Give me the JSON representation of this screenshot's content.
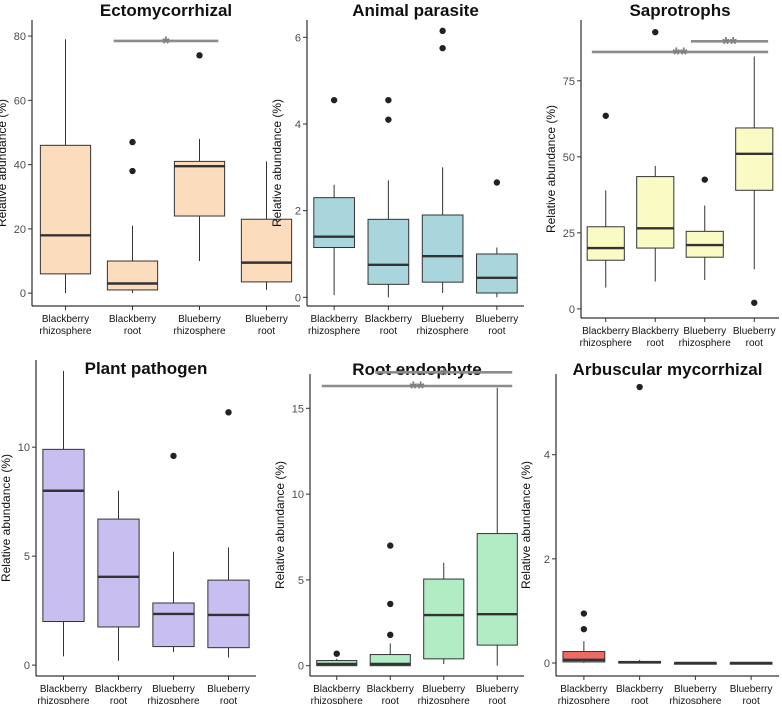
{
  "colors": {
    "ecto": "#fbdcbd",
    "animal": "#a9d6dc",
    "sapro": "#fafac4",
    "plant": "#c8bff0",
    "root": "#b2ecc4",
    "amf": "#ee6b63",
    "sig": "#8c8c8c"
  },
  "chart_data": [
    {
      "type": "box",
      "title": "Ectomycorrhizal",
      "ylabel": "Relative abundance (%)",
      "ylim": [
        -4,
        85
      ],
      "yticks": [
        0,
        20,
        40,
        60,
        80
      ],
      "fill": "ecto",
      "categories": [
        "Blackberry\nrhizosphere",
        "Blackberry\nroot",
        "Blueberry\nrhizosphere",
        "Blueberry\nroot"
      ],
      "boxes": [
        {
          "whislo": 0,
          "q1": 6,
          "med": 18,
          "q3": 46,
          "whishi": 79,
          "fliers": []
        },
        {
          "whislo": 0,
          "q1": 1,
          "med": 3,
          "q3": 10,
          "whishi": 21,
          "fliers": [
            38,
            47
          ]
        },
        {
          "whislo": 10,
          "q1": 24,
          "med": 39.5,
          "q3": 41,
          "whishi": 48,
          "fliers": [
            74
          ]
        },
        {
          "whislo": 1,
          "q1": 3.5,
          "med": 9.5,
          "q3": 23,
          "whishi": 41,
          "fliers": []
        }
      ],
      "significance": [
        {
          "from": 1,
          "to": 2,
          "y": 78.5,
          "label": "*"
        }
      ]
    },
    {
      "type": "box",
      "title": "Animal parasite",
      "ylabel": "Relative abundance (%)",
      "ylim": [
        -0.2,
        6.4
      ],
      "yticks": [
        0,
        2,
        4,
        6
      ],
      "fill": "animal",
      "categories": [
        "Blackberry\nrhizosphere",
        "Blackberry\nroot",
        "Blueberry\nrhizosphere",
        "Blueberry\nroot"
      ],
      "boxes": [
        {
          "whislo": 0.05,
          "q1": 1.15,
          "med": 1.4,
          "q3": 2.3,
          "whishi": 2.6,
          "fliers": [
            4.55
          ]
        },
        {
          "whislo": 0,
          "q1": 0.3,
          "med": 0.75,
          "q3": 1.8,
          "whishi": 2.7,
          "fliers": [
            4.1,
            4.55
          ]
        },
        {
          "whislo": 0.1,
          "q1": 0.35,
          "med": 0.95,
          "q3": 1.9,
          "whishi": 3.0,
          "fliers": [
            5.75,
            6.15
          ]
        },
        {
          "whislo": 0,
          "q1": 0.1,
          "med": 0.45,
          "q3": 1.0,
          "whishi": 1.15,
          "fliers": [
            2.65
          ]
        }
      ],
      "significance": []
    },
    {
      "type": "box",
      "title": "Saprotrophs",
      "ylabel": "Relative abundance (%)",
      "ylim": [
        -3,
        95
      ],
      "yticks": [
        0,
        25,
        50,
        75
      ],
      "fill": "sapro",
      "categories": [
        "Blackberry\nrhizosphere",
        "Blackberry\nroot",
        "Blueberry\nrhizosphere",
        "Blueberry\nroot"
      ],
      "boxes": [
        {
          "whislo": 7,
          "q1": 16,
          "med": 20,
          "q3": 27,
          "whishi": 39,
          "fliers": [
            63.5
          ]
        },
        {
          "whislo": 9,
          "q1": 20,
          "med": 26.5,
          "q3": 43.5,
          "whishi": 47,
          "fliers": [
            91
          ]
        },
        {
          "whislo": 9.5,
          "q1": 17,
          "med": 21,
          "q3": 25.5,
          "whishi": 34,
          "fliers": [
            42.5
          ]
        },
        {
          "whislo": 13,
          "q1": 39,
          "med": 51,
          "q3": 59.5,
          "whishi": 83,
          "fliers": [
            2
          ]
        }
      ],
      "significance": [
        {
          "from": 2,
          "to": 3,
          "y": 88,
          "label": "**"
        },
        {
          "from": 0,
          "to": 3,
          "y": 84.5,
          "label": "**"
        }
      ]
    },
    {
      "type": "box",
      "title": "Plant pathogen",
      "ylabel": "Relative abundance (%)",
      "ylim": [
        -0.5,
        14
      ],
      "yticks": [
        0,
        5,
        10
      ],
      "fill": "plant",
      "categories": [
        "Blackberry\nrhizosphere",
        "Blackberry\nroot",
        "Blueberry\nrhizosphere",
        "Blueberry\nroot"
      ],
      "boxes": [
        {
          "whislo": 0.4,
          "q1": 2.0,
          "med": 8.0,
          "q3": 9.9,
          "whishi": 13.5,
          "fliers": []
        },
        {
          "whislo": 0.2,
          "q1": 1.75,
          "med": 4.05,
          "q3": 6.7,
          "whishi": 8.0,
          "fliers": []
        },
        {
          "whislo": 0.6,
          "q1": 0.85,
          "med": 2.35,
          "q3": 2.85,
          "whishi": 5.2,
          "fliers": [
            9.6
          ]
        },
        {
          "whislo": 0.35,
          "q1": 0.8,
          "med": 2.3,
          "q3": 3.9,
          "whishi": 5.4,
          "fliers": [
            11.6
          ]
        }
      ],
      "significance": []
    },
    {
      "type": "box",
      "title": "Root endophyte",
      "ylabel": "Relative abundance (%)",
      "ylim": [
        -0.6,
        17
      ],
      "yticks": [
        0,
        5,
        10,
        15
      ],
      "fill": "root",
      "categories": [
        "Blackberry\nrhizosphere",
        "Blackberry\nroot",
        "Blueberry\nrhizosphere",
        "Blueberry\nroot"
      ],
      "boxes": [
        {
          "whislo": 0,
          "q1": 0,
          "med": 0.1,
          "q3": 0.3,
          "whishi": 0.4,
          "fliers": [
            0.7
          ]
        },
        {
          "whislo": 0,
          "q1": 0,
          "med": 0.1,
          "q3": 0.65,
          "whishi": 1.3,
          "fliers": [
            1.8,
            3.6,
            7.0
          ]
        },
        {
          "whislo": 0.1,
          "q1": 0.4,
          "med": 2.95,
          "q3": 5.05,
          "whishi": 6.0,
          "fliers": []
        },
        {
          "whislo": 0,
          "q1": 1.2,
          "med": 3.0,
          "q3": 7.7,
          "whishi": 16.2,
          "fliers": []
        }
      ],
      "significance": [
        {
          "from": 1,
          "to": 3,
          "y": 17.1,
          "label": "*"
        },
        {
          "from": 0,
          "to": 3,
          "y": 16.3,
          "label": "**"
        }
      ]
    },
    {
      "type": "box",
      "title": "Arbuscular mycorrhizal",
      "ylabel": "Relative abundance (%)",
      "ylim": [
        -0.25,
        5.55
      ],
      "yticks": [
        0,
        2,
        4
      ],
      "fill": "amf",
      "categories": [
        "Blackberry\nrhizosphere",
        "Blackberry\nroot",
        "Blueberry\nrhizosphere",
        "Blueberry\nroot"
      ],
      "boxes": [
        {
          "whislo": 0,
          "q1": 0.02,
          "med": 0.06,
          "q3": 0.22,
          "whishi": 0.42,
          "fliers": [
            0.65,
            0.95
          ]
        },
        {
          "whislo": 0,
          "q1": 0,
          "med": 0.01,
          "q3": 0.03,
          "whishi": 0.06,
          "fliers": [
            5.3
          ]
        },
        {
          "whislo": 0,
          "q1": 0,
          "med": 0,
          "q3": 0.005,
          "whishi": 0.01,
          "fliers": []
        },
        {
          "whislo": 0,
          "q1": 0,
          "med": 0,
          "q3": 0.005,
          "whishi": 0.01,
          "fliers": []
        }
      ],
      "significance": []
    }
  ]
}
